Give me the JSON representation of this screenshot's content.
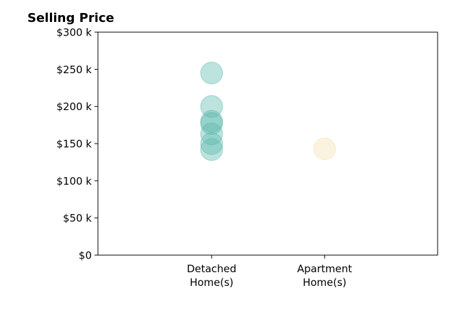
{
  "chart_data": {
    "type": "scatter",
    "title": "Selling Price",
    "xlabel": "",
    "ylabel": "",
    "categories": [
      [
        "Detached",
        "Home(s)"
      ],
      [
        "Apartment",
        "Home(s)"
      ]
    ],
    "ylim": [
      0,
      300000
    ],
    "yticks": [
      0,
      50000,
      100000,
      150000,
      200000,
      250000,
      300000
    ],
    "ytick_labels": [
      "$0",
      "$50 k",
      "$100 k",
      "$150 k",
      "$200 k",
      "$250 k",
      "$300 k"
    ],
    "grid": false,
    "series": [
      {
        "category_index": 0,
        "color": "#5bb8ac",
        "values": [
          245000,
          200000,
          180000,
          177000,
          163000,
          150000,
          142000
        ]
      },
      {
        "category_index": 1,
        "color": "#f4dfb0",
        "values": [
          143000
        ]
      }
    ]
  }
}
